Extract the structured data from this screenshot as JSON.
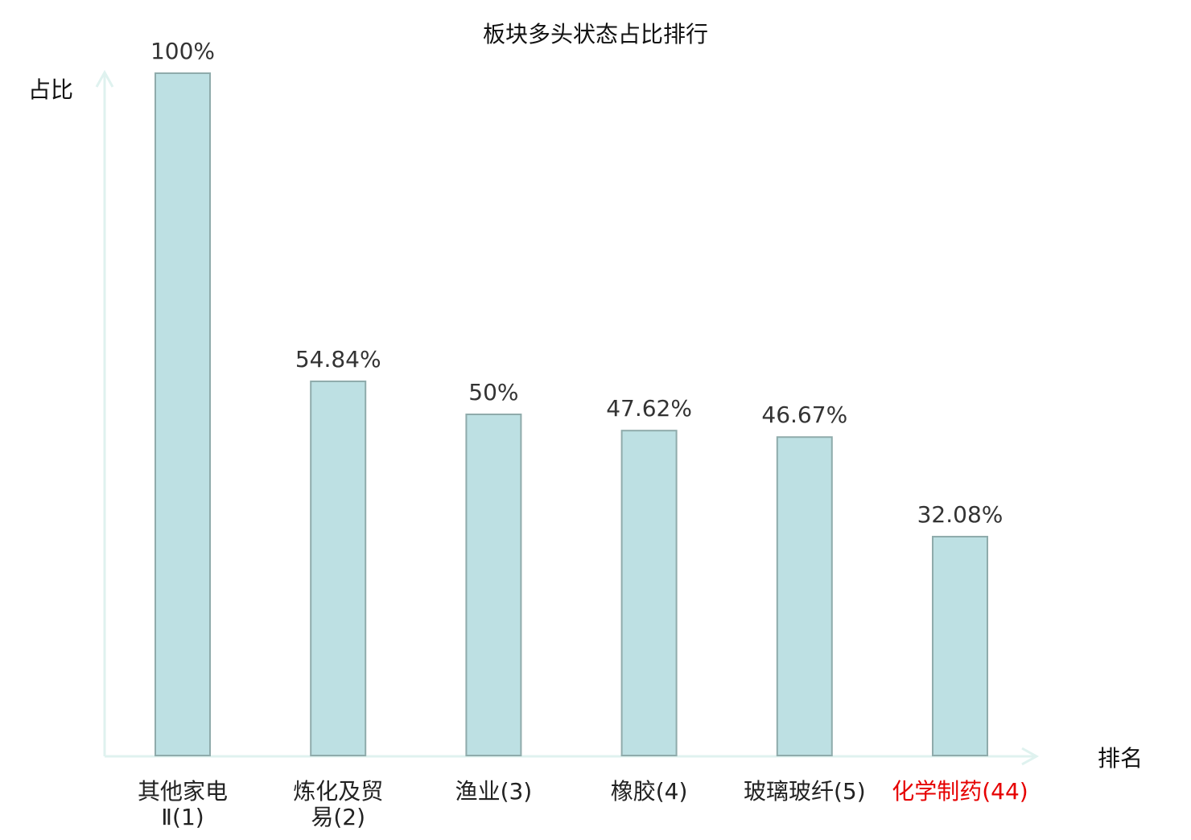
{
  "chart_data": {
    "type": "bar",
    "title": "板块多头状态占比排行",
    "ylabel": "占比",
    "xlabel": "排名",
    "ylim": [
      0,
      100
    ],
    "grid": false,
    "categories": [
      "其他家电\nⅡ(1)",
      "炼化及贸\n易(2)",
      "渔业(3)",
      "橡胶(4)",
      "玻璃玻纤(5)",
      "化学制药(44)"
    ],
    "values": [
      100,
      54.84,
      50,
      47.62,
      46.67,
      32.08
    ],
    "value_labels": [
      "100%",
      "54.84%",
      "50%",
      "47.62%",
      "46.67%",
      "32.08%"
    ],
    "highlight_index": 5,
    "colors": {
      "bar_fill": "#bde0e3",
      "bar_stroke": "#8fabab",
      "axis": "#dff2ef",
      "text": "#222222",
      "value_text": "#333333",
      "highlight_text": "#e60000"
    }
  }
}
